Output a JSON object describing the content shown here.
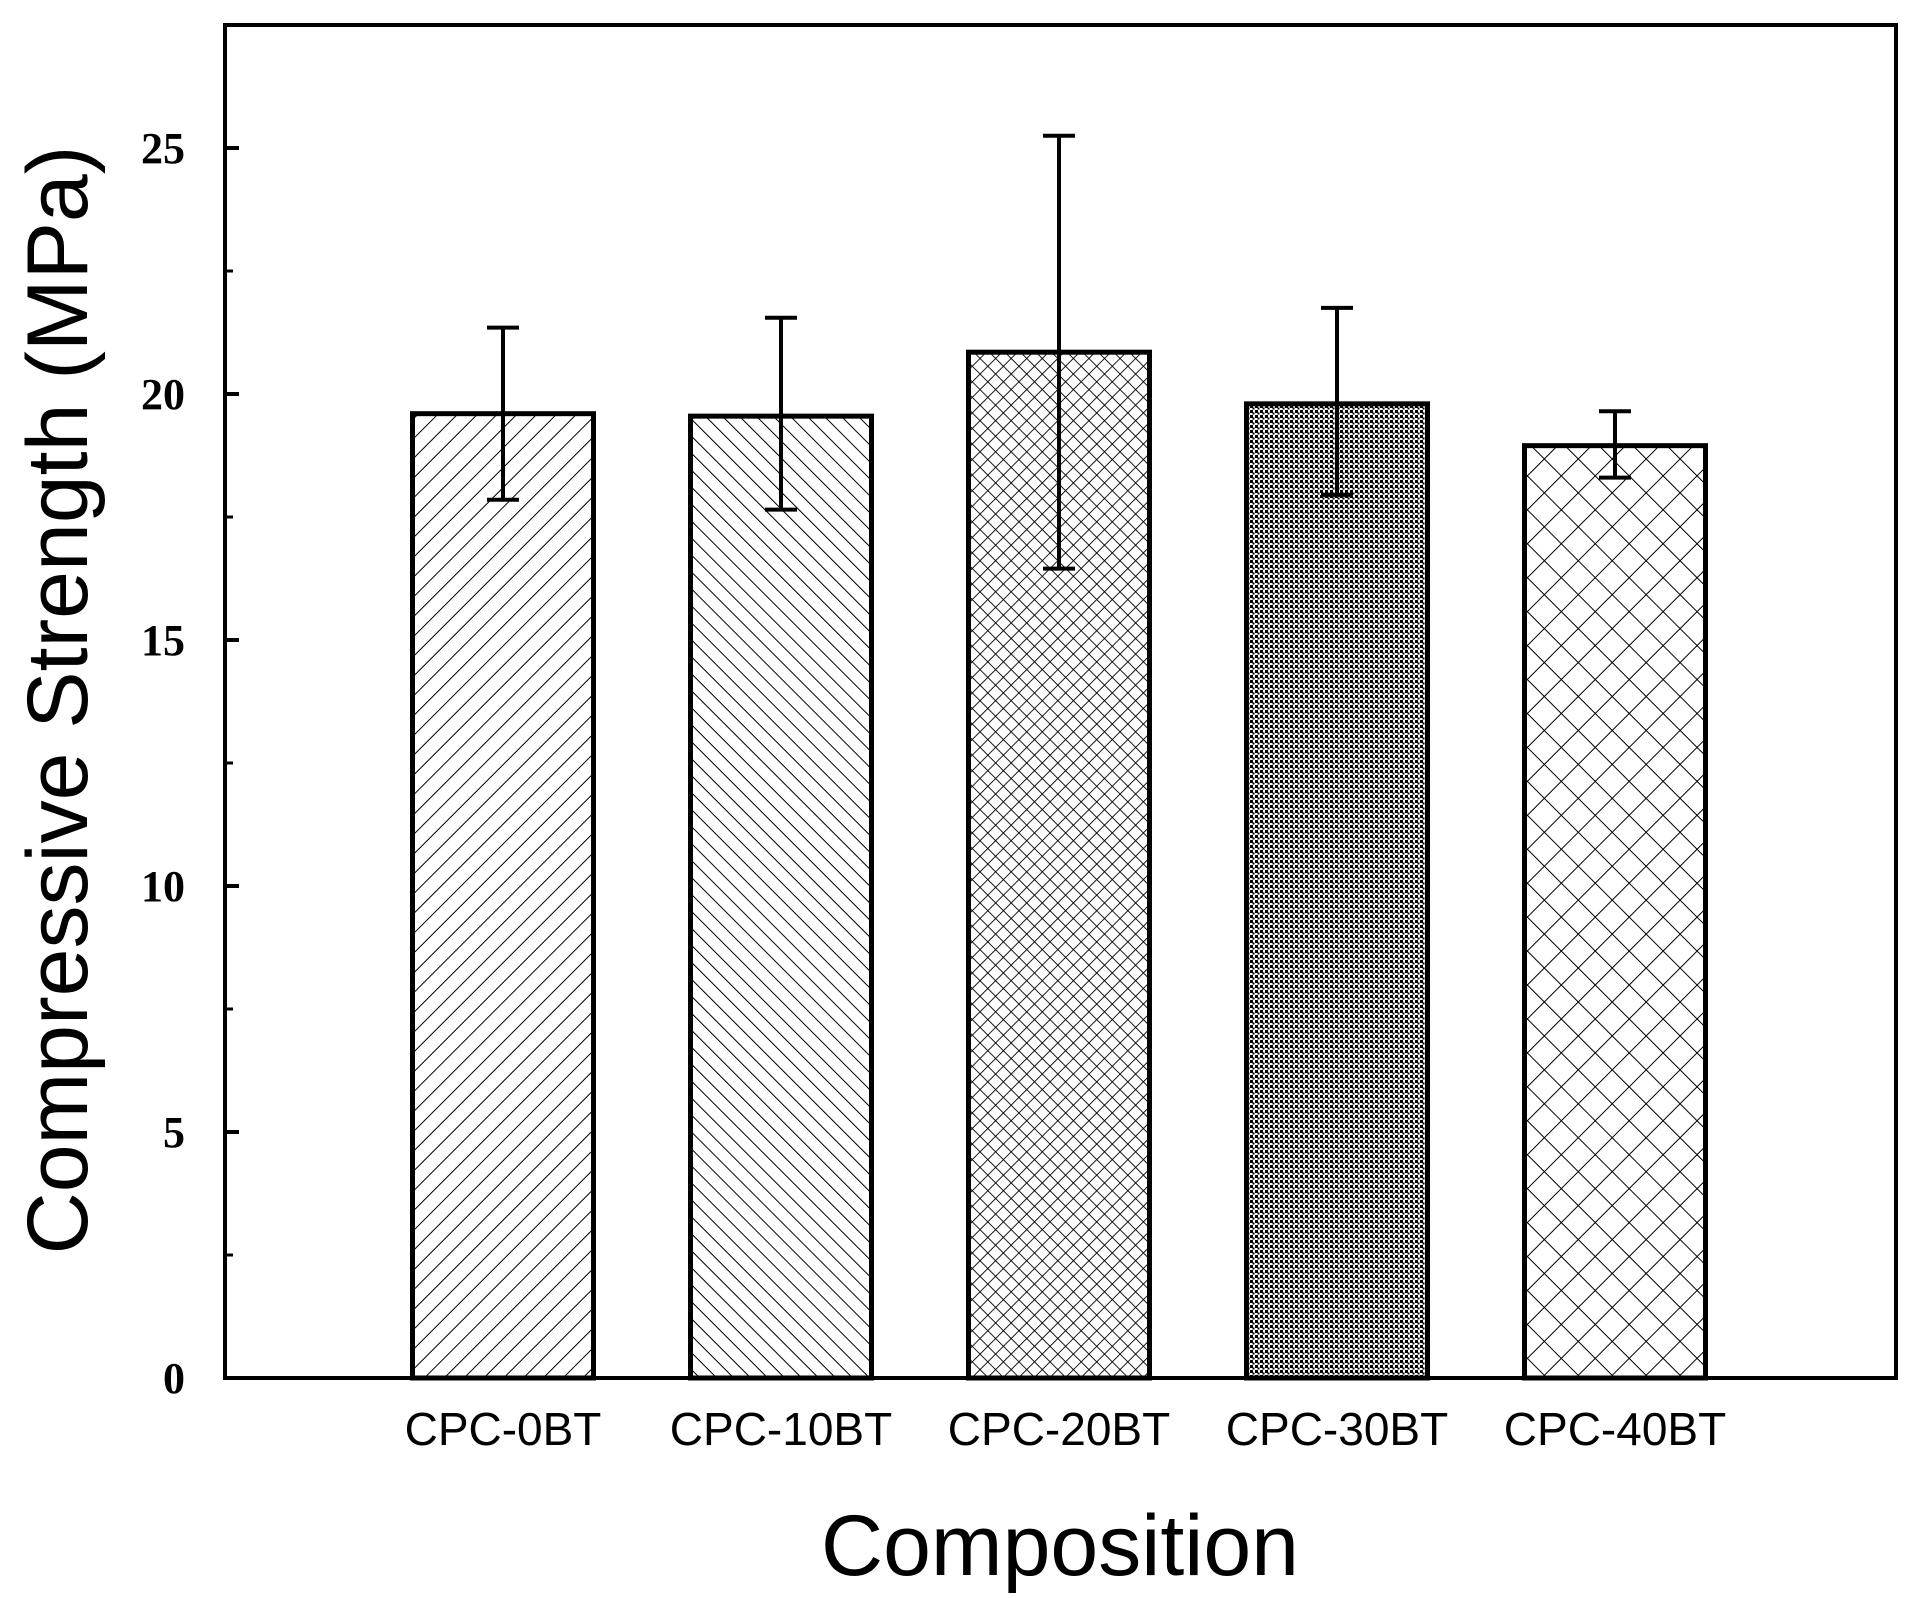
{
  "chart_data": {
    "type": "bar",
    "title": "",
    "xlabel": "Composition",
    "ylabel": "Compressive Strength (MPa)",
    "ylim": [
      0,
      27.5
    ],
    "yticks": [
      0,
      5,
      10,
      15,
      20,
      25
    ],
    "y_minor_step": 2.5,
    "grid": false,
    "categories": [
      "CPC-0BT",
      "CPC-10BT",
      "CPC-20BT",
      "CPC-30BT",
      "CPC-40BT"
    ],
    "values": [
      19.6,
      19.55,
      20.85,
      19.8,
      18.95
    ],
    "error_low": [
      17.85,
      17.65,
      16.45,
      17.95,
      18.3
    ],
    "error_high": [
      21.35,
      21.55,
      25.25,
      21.75,
      19.65
    ],
    "patterns": [
      "diagonal-forward",
      "diagonal-backward",
      "fine-crosshatch",
      "dense-dots",
      "diamond-crosshatch"
    ],
    "bar_edge_color": "#000000",
    "bar_fill_color": "#ffffff",
    "axis_color": "#000000"
  }
}
